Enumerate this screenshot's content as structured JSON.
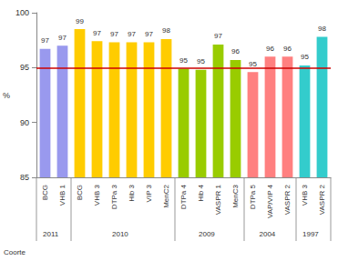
{
  "chart_data": {
    "type": "bar",
    "categories": [
      "BCG",
      "VHB 1",
      "BCG",
      "VHB 3",
      "DTPa 3",
      "Hib 3",
      "VIP 3",
      "MenC2",
      "DTPa 4",
      "Hib 4",
      "VASPR 1",
      "MenC3",
      "DTPa 5",
      "VAP/VIP 4",
      "VASPR 2",
      "VHB 3",
      "VASPR 2"
    ],
    "values": [
      96.7,
      97.0,
      98.5,
      97.4,
      97.3,
      97.3,
      97.3,
      97.6,
      94.9,
      94.8,
      97.1,
      95.7,
      94.6,
      96.0,
      96.0,
      95.2,
      97.8
    ],
    "value_labels": [
      "97",
      "97",
      "99",
      "97",
      "97",
      "97",
      "97",
      "98",
      "95",
      "95",
      "97",
      "96",
      "95",
      "96",
      "96",
      "95",
      "98"
    ],
    "colors": [
      "#9999ee",
      "#9999ee",
      "#ffcc00",
      "#ffcc00",
      "#ffcc00",
      "#ffcc00",
      "#ffcc00",
      "#ffcc00",
      "#99cc00",
      "#99cc00",
      "#99cc00",
      "#99cc00",
      "#ff8080",
      "#ff8080",
      "#ff8080",
      "#33cccc",
      "#33cccc"
    ],
    "cohorts": [
      "2011",
      "2011",
      "2010",
      "2010",
      "2010",
      "2010",
      "2010",
      "2010",
      "2009",
      "2009",
      "2009",
      "2009",
      "2004",
      "2004",
      "2004",
      "1997",
      "1997"
    ],
    "x_label": "Coorte",
    "y_label": "%",
    "ylim": [
      85,
      100
    ],
    "yticks": [
      85,
      90,
      95,
      100
    ],
    "reference_line": {
      "value": 95,
      "color": "#cc0000"
    },
    "data_labels": true,
    "grid": false
  }
}
